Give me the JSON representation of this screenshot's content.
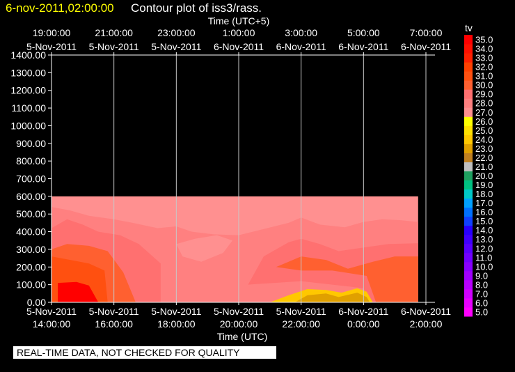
{
  "title": {
    "date_text": "6-nov-2011,02:00:00",
    "main_text": "Contour plot of iss3/rass."
  },
  "notice": "REAL-TIME DATA, NOT CHECKED FOR QUALITY",
  "colors": {
    "background": "#000000",
    "date_title": "#ffff00"
  },
  "chart_data": {
    "type": "heatmap",
    "top_axis": {
      "label": "Time (UTC+5)",
      "ticks": [
        {
          "time": "19:00:00",
          "date": "5-Nov-2011"
        },
        {
          "time": "21:00:00",
          "date": "5-Nov-2011"
        },
        {
          "time": "23:00:00",
          "date": "5-Nov-2011"
        },
        {
          "time": "1:00:00",
          "date": "6-Nov-2011"
        },
        {
          "time": "3:00:00",
          "date": "6-Nov-2011"
        },
        {
          "time": "5:00:00",
          "date": "6-Nov-2011"
        },
        {
          "time": "7:00:00",
          "date": "6-Nov-2011"
        }
      ]
    },
    "bottom_axis": {
      "label": "Time (UTC)",
      "ticks": [
        {
          "date": "5-Nov-2011",
          "time": "14:00:00"
        },
        {
          "date": "5-Nov-2011",
          "time": "16:00:00"
        },
        {
          "date": "5-Nov-2011",
          "time": "18:00:00"
        },
        {
          "date": "5-Nov-2011",
          "time": "20:00:00"
        },
        {
          "date": "5-Nov-2011",
          "time": "22:00:00"
        },
        {
          "date": "6-Nov-2011",
          "time": "0:00:00"
        },
        {
          "date": "6-Nov-2011",
          "time": "2:00:00"
        }
      ]
    },
    "x_range_utc_hours": [
      14,
      26
    ],
    "data_x_range_utc_hours": [
      14,
      25.75
    ],
    "y_axis": {
      "range": [
        0,
        1400
      ],
      "ticks": [
        "0.00",
        "100.00",
        "200.00",
        "300.00",
        "400.00",
        "500.00",
        "600.00",
        "700.00",
        "800.00",
        "900.00",
        "1000.00",
        "1100.00",
        "1200.00",
        "1300.00",
        "1400.00"
      ]
    },
    "data_y_range": [
      0,
      600
    ],
    "vertical_grid": true,
    "colorbar": {
      "label": "tv",
      "levels": [
        "5.0",
        "6.0",
        "7.0",
        "8.0",
        "9.0",
        "10.0",
        "11.0",
        "12.0",
        "13.0",
        "14.0",
        "15.0",
        "16.0",
        "17.0",
        "18.0",
        "19.0",
        "20.0",
        "21.0",
        "22.0",
        "23.0",
        "24.0",
        "25.0",
        "26.0",
        "27.0",
        "28.0",
        "29.0",
        "30.0",
        "31.0",
        "32.0",
        "33.0",
        "34.0",
        "35.0"
      ],
      "colors": [
        "#ff00ff",
        "#e800ff",
        "#d000ff",
        "#b800ff",
        "#a000ff",
        "#8800ff",
        "#7000ff",
        "#5800ff",
        "#4000ff",
        "#2800ff",
        "#1040ff",
        "#0070ff",
        "#00a0ff",
        "#00c8c8",
        "#00c080",
        "#20a060",
        "#c0c0c0",
        "#c08020",
        "#e0a000",
        "#ffc800",
        "#ffe000",
        "#ffff00",
        "#ff9090",
        "#ff8080",
        "#ff7070",
        "#ff6030",
        "#ff5010",
        "#ff4000",
        "#ff2000",
        "#ff1000",
        "#ff0000"
      ]
    },
    "fields": [
      {
        "value": 27,
        "points": [
          [
            14,
            600
          ],
          [
            25.75,
            600
          ],
          [
            25.75,
            0
          ],
          [
            14,
            0
          ]
        ]
      },
      {
        "value": 28,
        "points": [
          [
            14,
            540
          ],
          [
            14.6,
            520
          ],
          [
            15.2,
            490
          ],
          [
            16,
            470
          ],
          [
            16.6,
            450
          ],
          [
            17.4,
            420
          ],
          [
            18,
            430
          ],
          [
            18.5,
            400
          ],
          [
            19.2,
            385
          ],
          [
            20,
            380
          ],
          [
            20.8,
            415
          ],
          [
            21.6,
            450
          ],
          [
            22,
            480
          ],
          [
            22.6,
            440
          ],
          [
            23.4,
            425
          ],
          [
            24,
            455
          ],
          [
            24.6,
            470
          ],
          [
            25.2,
            465
          ],
          [
            25.75,
            455
          ],
          [
            25.75,
            0
          ],
          [
            14,
            0
          ]
        ]
      },
      {
        "value": 29,
        "points": [
          [
            14,
            420
          ],
          [
            14.5,
            470
          ],
          [
            15,
            440
          ],
          [
            15.5,
            400
          ],
          [
            16.2,
            380
          ],
          [
            16.8,
            330
          ],
          [
            17.5,
            220
          ],
          [
            17.5,
            0
          ],
          [
            14,
            0
          ]
        ]
      },
      {
        "value": 29,
        "points": [
          [
            20.3,
            100
          ],
          [
            20.8,
            260
          ],
          [
            21.6,
            340
          ],
          [
            22,
            360
          ],
          [
            22.6,
            330
          ],
          [
            23.2,
            290
          ],
          [
            24,
            310
          ],
          [
            24.8,
            330
          ],
          [
            25.75,
            335
          ],
          [
            25.75,
            0
          ],
          [
            24.2,
            0
          ],
          [
            24,
            80
          ],
          [
            23,
            100
          ],
          [
            22,
            120
          ]
        ]
      },
      {
        "value": 30,
        "points": [
          [
            14,
            300
          ],
          [
            14.5,
            330
          ],
          [
            15.2,
            320
          ],
          [
            15.8,
            290
          ],
          [
            16.3,
            170
          ],
          [
            16.7,
            0
          ],
          [
            14,
            0
          ]
        ]
      },
      {
        "value": 30,
        "points": [
          [
            21.2,
            200
          ],
          [
            22,
            260
          ],
          [
            22.8,
            240
          ],
          [
            23.5,
            190
          ],
          [
            24.3,
            230
          ],
          [
            25,
            260
          ],
          [
            25.75,
            260
          ],
          [
            25.75,
            0
          ],
          [
            24.4,
            0
          ],
          [
            24.1,
            150
          ],
          [
            23,
            180
          ],
          [
            22,
            180
          ]
        ]
      },
      {
        "value": 31,
        "points": [
          [
            14,
            260
          ],
          [
            14.6,
            240
          ],
          [
            15.2,
            220
          ],
          [
            15.7,
            180
          ],
          [
            15.8,
            0
          ],
          [
            14,
            0
          ]
        ]
      },
      {
        "value": 35,
        "points": [
          [
            14.2,
            110
          ],
          [
            14.8,
            115
          ],
          [
            15.2,
            95
          ],
          [
            15.5,
            0
          ],
          [
            14.2,
            0
          ]
        ]
      },
      {
        "value": 27,
        "points": [
          [
            18.6,
            360
          ],
          [
            19.3,
            380
          ],
          [
            19.8,
            350
          ],
          [
            19.5,
            280
          ],
          [
            18.8,
            230
          ],
          [
            18.2,
            260
          ],
          [
            18,
            330
          ]
        ]
      },
      {
        "value": 24,
        "points": [
          [
            21,
            0
          ],
          [
            21.6,
            40
          ],
          [
            22.2,
            75
          ],
          [
            22.8,
            70
          ],
          [
            23.3,
            55
          ],
          [
            23.8,
            80
          ],
          [
            24.1,
            60
          ],
          [
            24.3,
            0
          ]
        ]
      },
      {
        "value": 23,
        "points": [
          [
            21.8,
            0
          ],
          [
            22.2,
            40
          ],
          [
            22.8,
            50
          ],
          [
            23.2,
            30
          ],
          [
            23.8,
            55
          ],
          [
            24.1,
            30
          ],
          [
            24.2,
            0
          ]
        ]
      }
    ]
  }
}
